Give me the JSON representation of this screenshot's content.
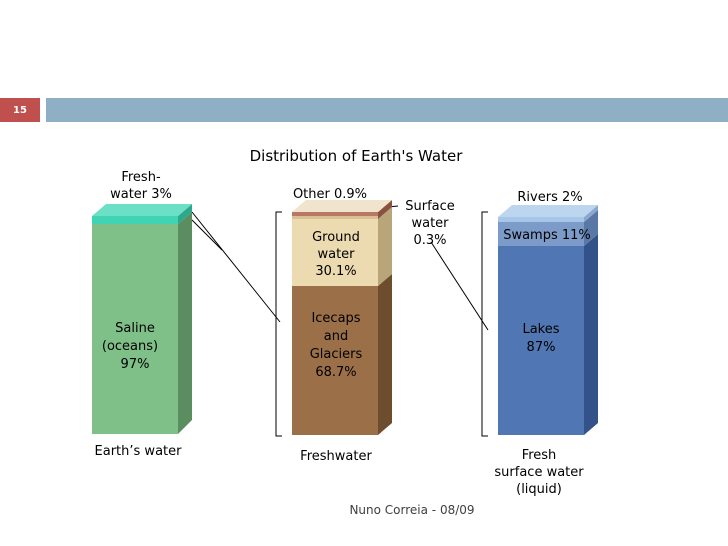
{
  "slide": {
    "number": "15",
    "footer": "Nuno Correia - 08/09"
  },
  "colors": {
    "header_band": "#8fafc4",
    "slide_badge": "#c0504d",
    "saline": "#7fbf88",
    "freshwater_top": "#40d4b4",
    "icecaps": "#9b7048",
    "ground_water": "#ecdab0",
    "other": "#b87868",
    "lakes": "#5077b3",
    "swamps": "#7c9bc9",
    "rivers": "#a8c6e8"
  },
  "chart_data": {
    "type": "bar",
    "title": "Distribution of Earth's Water",
    "stacked": true,
    "bars": [
      {
        "name": "Earth's water",
        "segments": [
          {
            "label": "Saline (oceans) 97%",
            "value": 97
          },
          {
            "label": "Fresh-water 3%",
            "value": 3
          }
        ]
      },
      {
        "name": "Freshwater",
        "segments": [
          {
            "label": "Icecaps and Glaciers 68.7%",
            "value": 68.7
          },
          {
            "label": "Ground water 30.1%",
            "value": 30.1
          },
          {
            "label": "Surface water 0.3%",
            "value": 0.3
          },
          {
            "label": "Other 0.9%",
            "value": 0.9
          }
        ]
      },
      {
        "name": "Fresh surface water (liquid)",
        "segments": [
          {
            "label": "Lakes 87%",
            "value": 87
          },
          {
            "label": "Swamps 11%",
            "value": 11
          },
          {
            "label": "Rivers 2%",
            "value": 2
          }
        ]
      }
    ]
  }
}
